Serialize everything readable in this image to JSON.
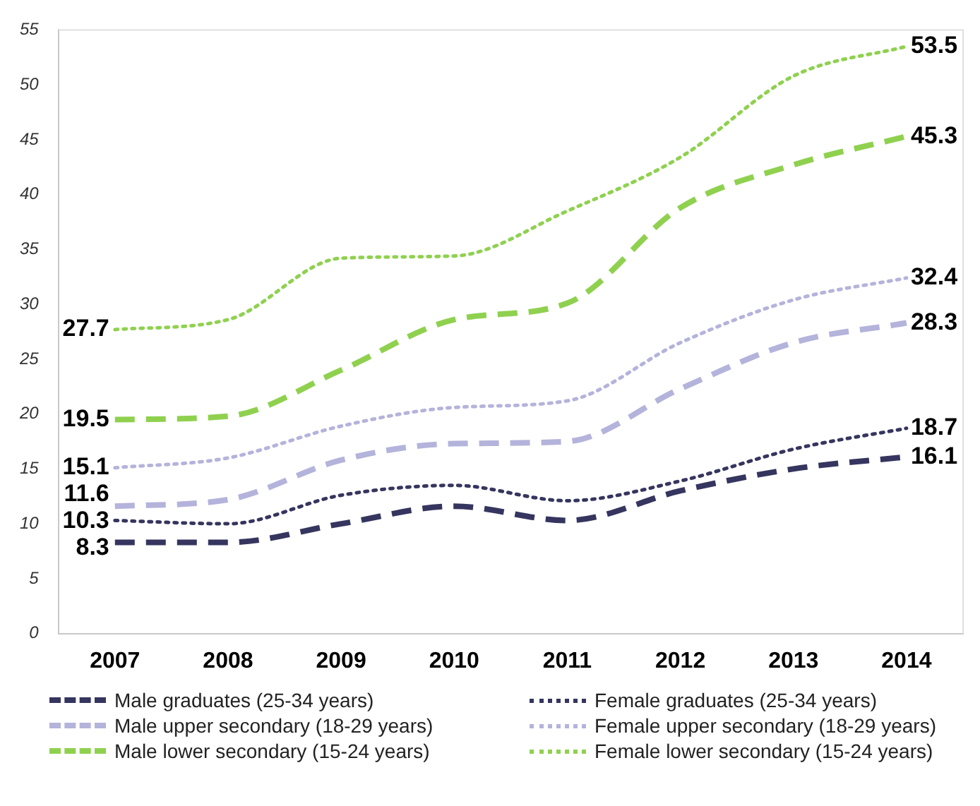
{
  "chart_data": {
    "type": "line",
    "categories": [
      "2007",
      "2008",
      "2009",
      "2010",
      "2011",
      "2012",
      "2013",
      "2014"
    ],
    "ylim": [
      0,
      55
    ],
    "yticks": [
      0,
      5,
      10,
      15,
      20,
      25,
      30,
      35,
      40,
      45,
      50,
      55
    ],
    "grid": false,
    "legend": "bottom",
    "marker": "none",
    "series": [
      {
        "name": "Male graduates  (25-34 years)",
        "color": "#35355f",
        "line_style": "dashed",
        "values": [
          8.3,
          8.3,
          10.0,
          11.6,
          10.3,
          13.0,
          15.0,
          16.1
        ],
        "value_labels": [
          "8.3",
          null,
          null,
          null,
          null,
          null,
          null,
          "16.1"
        ]
      },
      {
        "name": "Female graduates  (25-34 years)",
        "color": "#35355f",
        "line_style": "dotted",
        "values": [
          10.3,
          10.0,
          12.6,
          13.5,
          12.1,
          13.9,
          16.8,
          18.7
        ],
        "value_labels": [
          "10.3",
          null,
          null,
          null,
          null,
          null,
          null,
          "18.7"
        ]
      },
      {
        "name": "Male upper secondary (18-29 years)",
        "color": "#b4b3db",
        "line_style": "dashed",
        "values": [
          11.6,
          12.2,
          15.8,
          17.3,
          17.5,
          22.3,
          26.5,
          28.3
        ],
        "value_labels": [
          "11.6",
          null,
          null,
          null,
          null,
          null,
          null,
          "28.3"
        ]
      },
      {
        "name": "Female upper secondary (18-29 years)",
        "color": "#b4b3db",
        "line_style": "dotted",
        "values": [
          15.1,
          16.0,
          18.9,
          20.6,
          21.2,
          26.5,
          30.4,
          32.4
        ],
        "value_labels": [
          "15.1",
          null,
          null,
          null,
          null,
          null,
          null,
          "32.4"
        ]
      },
      {
        "name": "Male lower secondary (15-24 years)",
        "color": "#8fd14f",
        "line_style": "dashed",
        "values": [
          19.5,
          19.8,
          24.0,
          28.6,
          30.1,
          38.8,
          42.7,
          45.3
        ],
        "value_labels": [
          "19.5",
          null,
          null,
          null,
          null,
          null,
          null,
          "45.3"
        ]
      },
      {
        "name": "Female lower secondary (15-24 years)",
        "color": "#8fd14f",
        "line_style": "dotted",
        "values": [
          27.7,
          28.6,
          34.2,
          34.4,
          38.5,
          43.4,
          50.8,
          53.5
        ],
        "value_labels": [
          "27.7",
          null,
          null,
          null,
          null,
          null,
          null,
          "53.5"
        ]
      }
    ]
  }
}
